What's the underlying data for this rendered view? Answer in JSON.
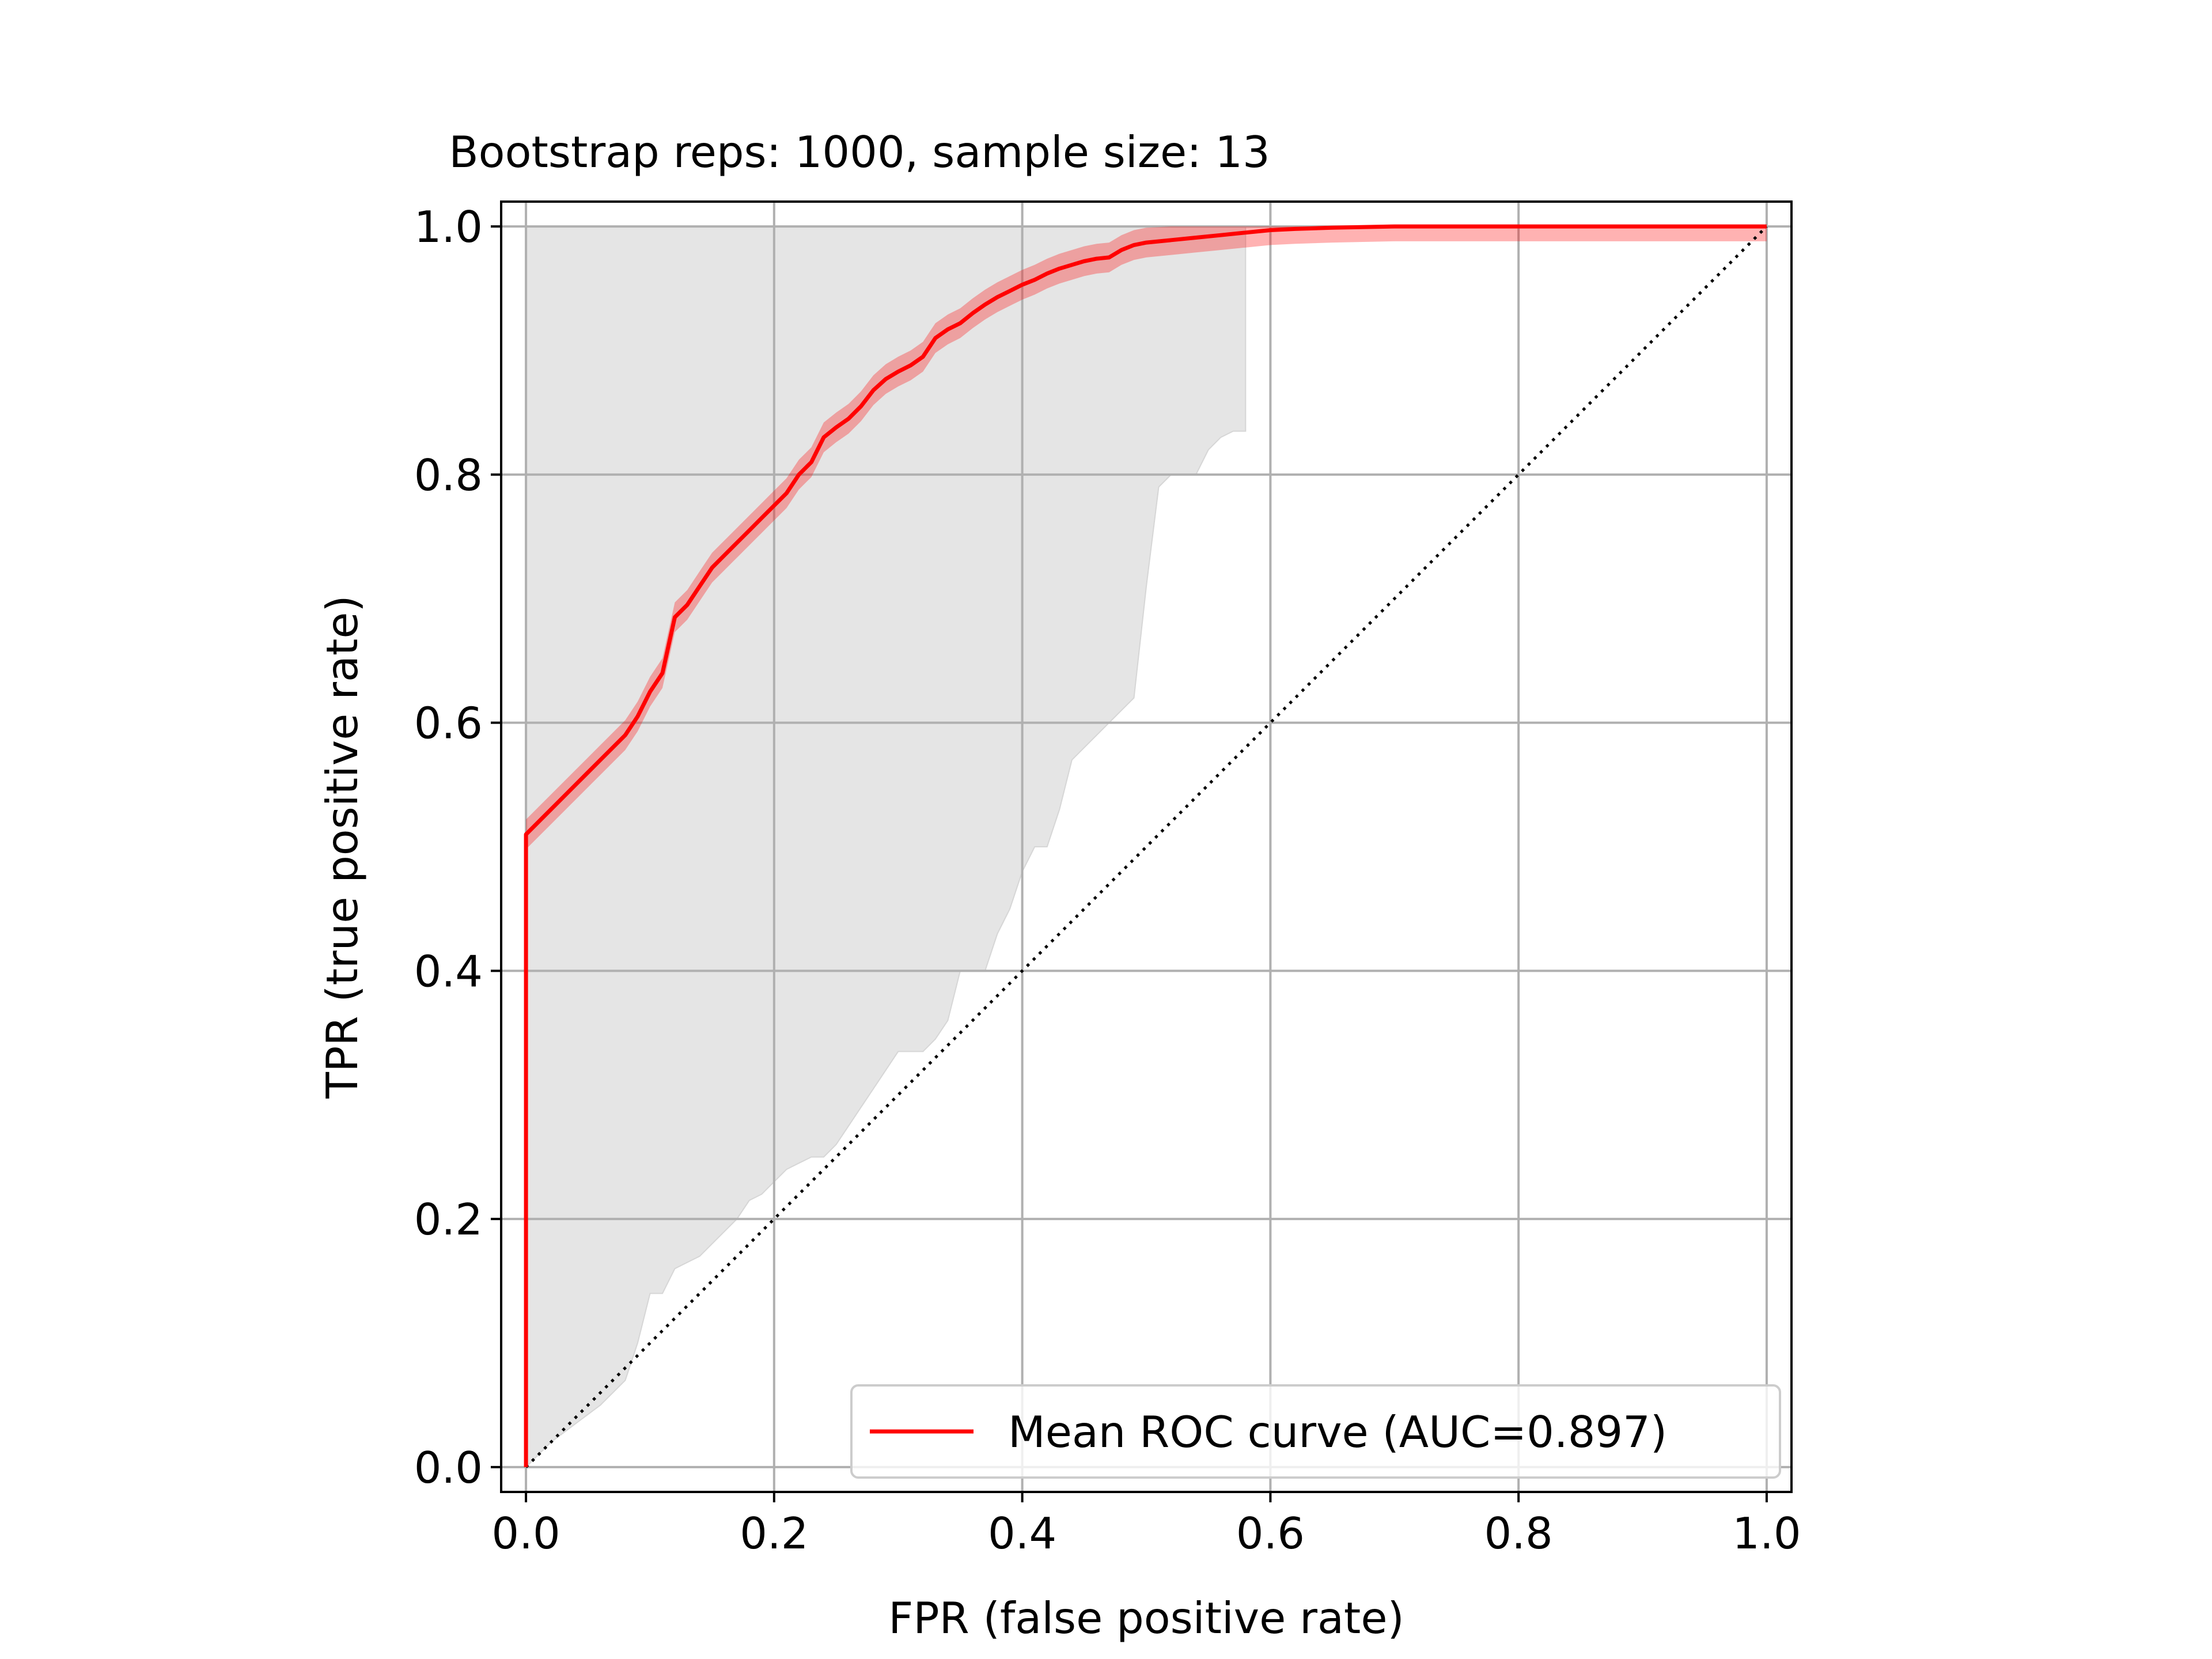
{
  "chart_data": {
    "type": "line",
    "title": "Bootstrap reps: 1000, sample size: 13",
    "xlabel": "FPR (false positive rate)",
    "ylabel": "TPR (true positive rate)",
    "xlim": [
      -0.02,
      1.02
    ],
    "ylim": [
      -0.02,
      1.02
    ],
    "xticks": [
      0.0,
      0.2,
      0.4,
      0.6,
      0.8,
      1.0
    ],
    "yticks": [
      0.0,
      0.2,
      0.4,
      0.6,
      0.8,
      1.0
    ],
    "xtick_labels": [
      "0.0",
      "0.2",
      "0.4",
      "0.6",
      "0.8",
      "1.0"
    ],
    "ytick_labels": [
      "0.0",
      "0.2",
      "0.4",
      "0.6",
      "0.8",
      "1.0"
    ],
    "grid": true,
    "legend": {
      "position": "lower right",
      "entries": [
        "Mean ROC curve (AUC=0.897)"
      ]
    },
    "series": [
      {
        "name": "Mean ROC curve (AUC=0.897)",
        "color": "#ff0000",
        "x": [
          0.0,
          0.0,
          0.02,
          0.04,
          0.06,
          0.08,
          0.09,
          0.1,
          0.11,
          0.12,
          0.13,
          0.14,
          0.15,
          0.16,
          0.17,
          0.18,
          0.19,
          0.2,
          0.21,
          0.22,
          0.23,
          0.24,
          0.25,
          0.26,
          0.27,
          0.28,
          0.29,
          0.3,
          0.31,
          0.32,
          0.33,
          0.34,
          0.35,
          0.36,
          0.37,
          0.38,
          0.39,
          0.4,
          0.41,
          0.42,
          0.43,
          0.44,
          0.45,
          0.46,
          0.47,
          0.48,
          0.49,
          0.5,
          0.52,
          0.54,
          0.56,
          0.58,
          0.6,
          0.62,
          0.65,
          0.7,
          0.8,
          0.9,
          1.0
        ],
        "y": [
          0.0,
          0.51,
          0.53,
          0.55,
          0.57,
          0.59,
          0.605,
          0.625,
          0.64,
          0.685,
          0.695,
          0.71,
          0.725,
          0.735,
          0.745,
          0.755,
          0.765,
          0.775,
          0.785,
          0.8,
          0.81,
          0.83,
          0.838,
          0.845,
          0.855,
          0.868,
          0.877,
          0.883,
          0.888,
          0.895,
          0.91,
          0.917,
          0.922,
          0.93,
          0.937,
          0.943,
          0.948,
          0.953,
          0.957,
          0.962,
          0.966,
          0.969,
          0.972,
          0.974,
          0.975,
          0.981,
          0.985,
          0.987,
          0.989,
          0.991,
          0.993,
          0.995,
          0.997,
          0.998,
          0.999,
          1.0,
          1.0,
          1.0,
          1.0
        ]
      },
      {
        "name": "chance",
        "color": "#000000",
        "style": "dotted",
        "x": [
          0.0,
          1.0
        ],
        "y": [
          0.0,
          1.0
        ]
      }
    ],
    "bands": [
      {
        "name": "bootstrap range",
        "color": "#e5e5e5",
        "x": [
          0.0,
          0.02,
          0.04,
          0.06,
          0.08,
          0.09,
          0.1,
          0.11,
          0.12,
          0.13,
          0.14,
          0.15,
          0.16,
          0.17,
          0.18,
          0.19,
          0.2,
          0.21,
          0.22,
          0.23,
          0.24,
          0.25,
          0.26,
          0.27,
          0.28,
          0.29,
          0.3,
          0.31,
          0.32,
          0.33,
          0.34,
          0.35,
          0.36,
          0.37,
          0.38,
          0.39,
          0.4,
          0.41,
          0.42,
          0.43,
          0.44,
          0.45,
          0.46,
          0.47,
          0.48,
          0.49,
          0.5,
          0.51,
          0.52,
          0.53,
          0.54,
          0.55,
          0.56,
          0.57,
          0.58
        ],
        "lower": [
          0.0,
          0.02,
          0.035,
          0.05,
          0.07,
          0.1,
          0.14,
          0.14,
          0.16,
          0.165,
          0.17,
          0.18,
          0.19,
          0.2,
          0.215,
          0.22,
          0.23,
          0.24,
          0.245,
          0.25,
          0.25,
          0.26,
          0.275,
          0.29,
          0.305,
          0.32,
          0.335,
          0.335,
          0.335,
          0.345,
          0.36,
          0.4,
          0.4,
          0.4,
          0.43,
          0.45,
          0.48,
          0.5,
          0.5,
          0.53,
          0.57,
          0.58,
          0.59,
          0.6,
          0.61,
          0.62,
          0.71,
          0.79,
          0.8,
          0.8,
          0.8,
          0.82,
          0.83,
          0.835,
          0.835
        ],
        "upper": [
          1.0,
          1.0,
          1.0,
          1.0,
          1.0,
          1.0,
          1.0,
          1.0,
          1.0,
          1.0,
          1.0,
          1.0,
          1.0,
          1.0,
          1.0,
          1.0,
          1.0,
          1.0,
          1.0,
          1.0,
          1.0,
          1.0,
          1.0,
          1.0,
          1.0,
          1.0,
          1.0,
          1.0,
          1.0,
          1.0,
          1.0,
          1.0,
          1.0,
          1.0,
          1.0,
          1.0,
          1.0,
          1.0,
          1.0,
          1.0,
          1.0,
          1.0,
          1.0,
          1.0,
          1.0,
          1.0,
          1.0,
          1.0,
          1.0,
          1.0,
          1.0,
          1.0,
          1.0,
          1.0,
          1.0
        ]
      }
    ]
  }
}
